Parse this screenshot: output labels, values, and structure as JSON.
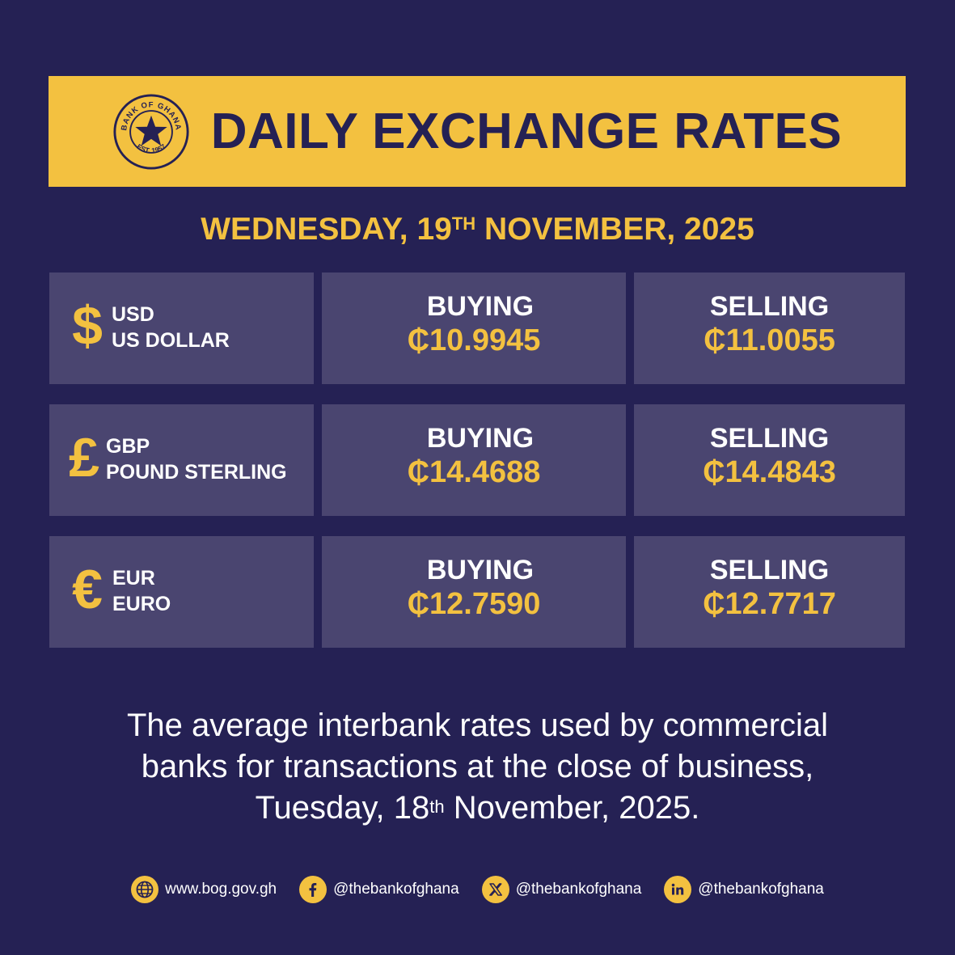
{
  "header": {
    "title": "DAILY EXCHANGE RATES",
    "seal_top_text": "BANK OF GHANA",
    "seal_bottom_text": "EST. 1957"
  },
  "date": {
    "day": "WEDNESDAY, 19",
    "ordinal": "TH",
    "rest": " NOVEMBER, 2025"
  },
  "rates": [
    {
      "symbol": "$",
      "code": "USD",
      "name": "US DOLLAR",
      "buy_label": "BUYING",
      "buy": "₵10.9945",
      "sell_label": "SELLING",
      "sell": "₵11.0055"
    },
    {
      "symbol": "£",
      "code": "GBP",
      "name": "POUND STERLING",
      "buy_label": "BUYING",
      "buy": "₵14.4688",
      "sell_label": "SELLING",
      "sell": "₵14.4843"
    },
    {
      "symbol": "€",
      "code": "EUR",
      "name": "EURO",
      "buy_label": "BUYING",
      "buy": "₵12.7590",
      "sell_label": "SELLING",
      "sell": "₵12.7717"
    }
  ],
  "note": {
    "line1": "The average interbank rates used by commercial",
    "line2": "banks for transactions at the close of business,",
    "line3_a": "Tuesday, 18",
    "line3_ord": "th",
    "line3_b": " November, 2025."
  },
  "footer": {
    "website": "www.bog.gov.gh",
    "facebook": "@thebankofghana",
    "x": "@thebankofghana",
    "linkedin": "@thebankofghana"
  },
  "colors": {
    "background": "#252154",
    "accent": "#f3c140",
    "cell": "#4a4570"
  }
}
